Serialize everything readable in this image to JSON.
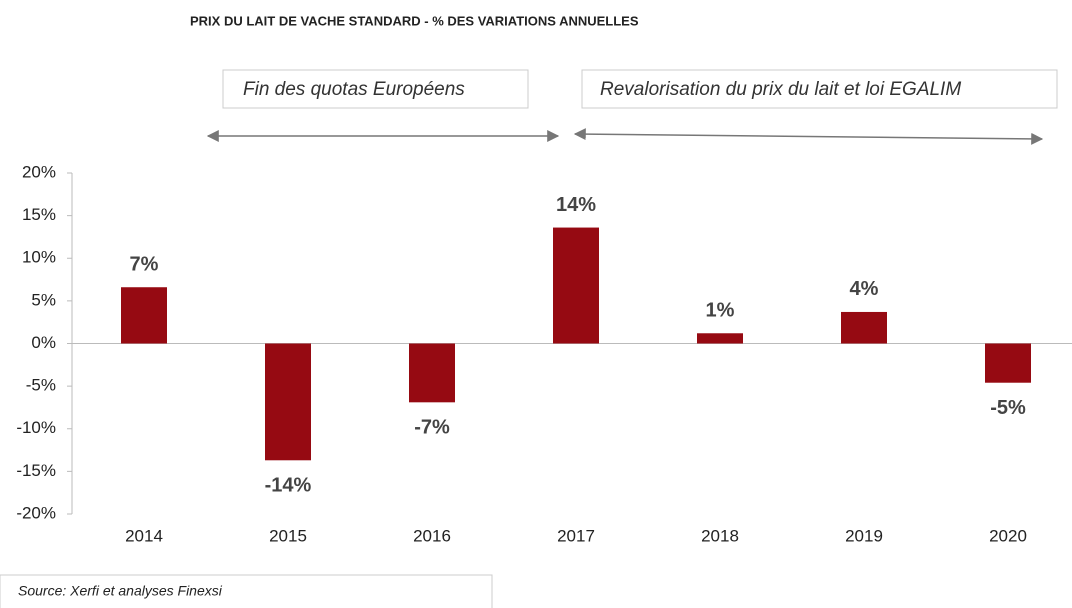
{
  "chart_data": {
    "type": "bar",
    "title": "PRIX DU LAIT DE VACHE STANDARD - % DES VARIATIONS ANNUELLES",
    "annotations": [
      "Fin des quotas Européens",
      "Revalorisation du prix du lait et loi EGALIM"
    ],
    "source": "Source: Xerfi et analyses Finexsi",
    "categories": [
      "2014",
      "2015",
      "2016",
      "2017",
      "2018",
      "2019",
      "2020"
    ],
    "values": [
      6.6,
      -13.7,
      -6.9,
      13.6,
      1.2,
      3.7,
      -4.6
    ],
    "value_labels": [
      "7%",
      "-14%",
      "-7%",
      "14%",
      "1%",
      "4%",
      "-5%"
    ],
    "color": "#960a12",
    "ylim": [
      -20,
      20
    ],
    "yticks": [
      {
        "value": -20,
        "label": "-20%"
      },
      {
        "value": -15,
        "label": "-15%"
      },
      {
        "value": -10,
        "label": "-10%"
      },
      {
        "value": -5,
        "label": "-5%"
      },
      {
        "value": 0,
        "label": "0%"
      },
      {
        "value": 5,
        "label": "5%"
      },
      {
        "value": 10,
        "label": "10%"
      },
      {
        "value": 15,
        "label": "15%"
      },
      {
        "value": 20,
        "label": "20%"
      }
    ],
    "grid": false
  }
}
